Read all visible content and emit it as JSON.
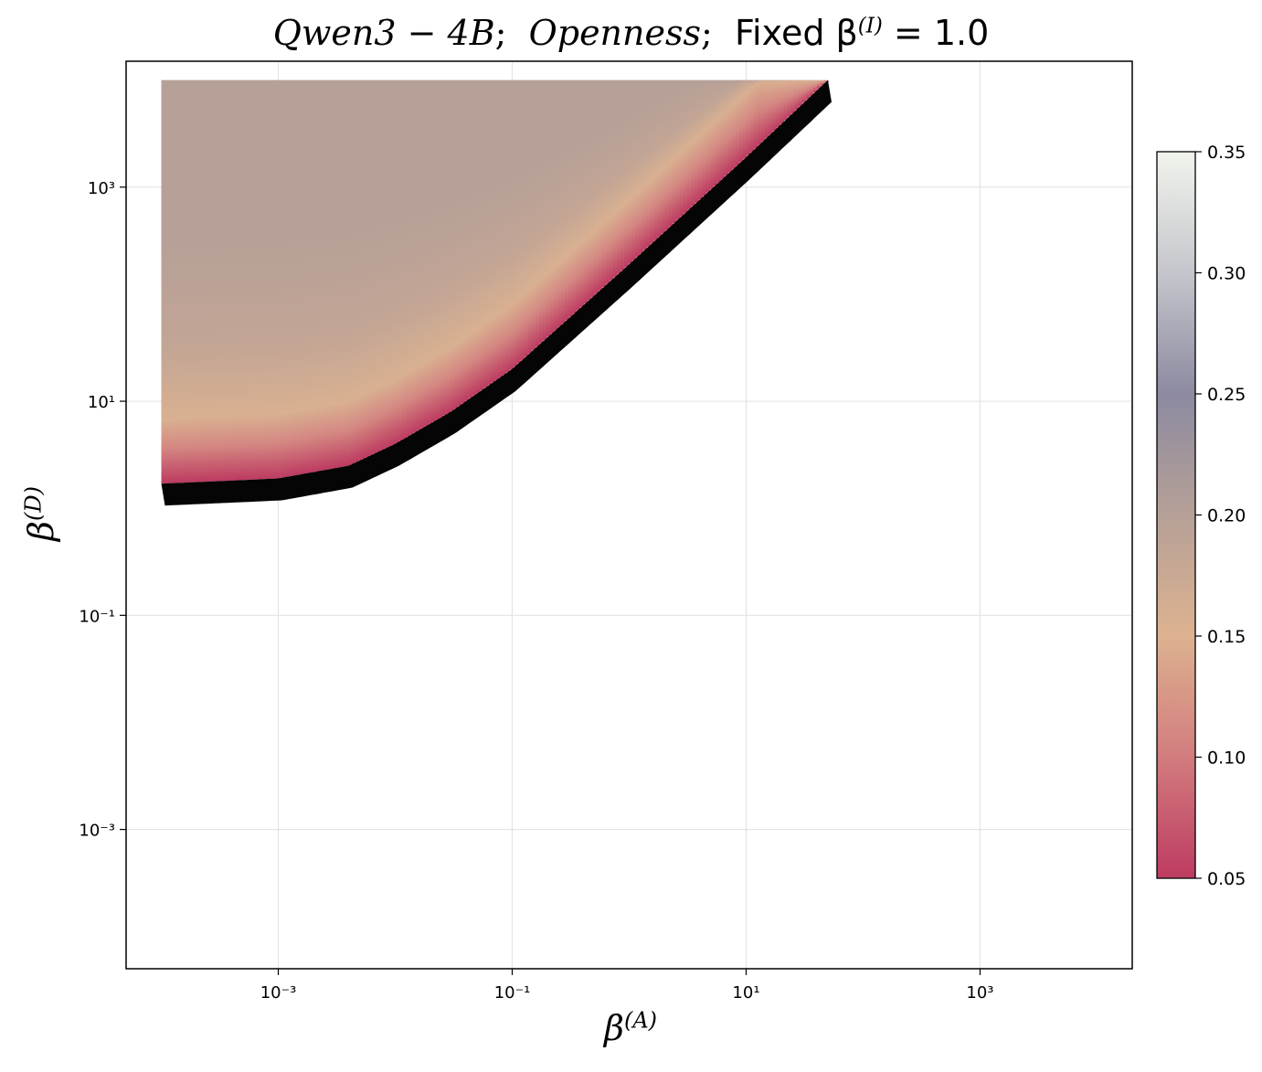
{
  "title": {
    "model": "Qwen3 − 4B",
    "trait": "Openness",
    "fixed_prefix": "Fixed β",
    "fixed_sup": "(I)",
    "fixed_value": "= 1.0"
  },
  "chart_data": {
    "type": "heatmap",
    "x_scale": "log",
    "y_scale": "log",
    "xlabel_base": "β",
    "xlabel_sup": "(A)",
    "ylabel_base": "β",
    "ylabel_sup": "(D)",
    "xlim": [
      5e-05,
      20000
    ],
    "ylim": [
      5e-05,
      15000
    ],
    "x_ticks": [
      {
        "value": 0.001,
        "label": "10⁻³"
      },
      {
        "value": 0.1,
        "label": "10⁻¹"
      },
      {
        "value": 10,
        "label": "10¹"
      },
      {
        "value": 1000,
        "label": "10³"
      }
    ],
    "y_ticks": [
      {
        "value": 0.001,
        "label": "10⁻³"
      },
      {
        "value": 0.1,
        "label": "10⁻¹"
      },
      {
        "value": 10,
        "label": "10¹"
      },
      {
        "value": 1000,
        "label": "10³"
      }
    ],
    "grid": true,
    "filled_region": {
      "x_range": [
        0.0001,
        50
      ],
      "y_max": 10000,
      "lower_boundary": [
        {
          "x": 0.0001,
          "y": 1.7
        },
        {
          "x": 0.001,
          "y": 1.9
        },
        {
          "x": 0.004,
          "y": 2.5
        },
        {
          "x": 0.01,
          "y": 4
        },
        {
          "x": 0.03,
          "y": 8
        },
        {
          "x": 0.1,
          "y": 20
        },
        {
          "x": 1,
          "y": 190
        },
        {
          "x": 10,
          "y": 1900
        },
        {
          "x": 50,
          "y": 10000
        }
      ],
      "ridge_offset_decades": 0.6,
      "background_value": 0.2,
      "ridge_value": 0.155,
      "edge_value": 0.05
    },
    "colorbar": {
      "min": 0.05,
      "max": 0.35,
      "ticks": [
        "0.05",
        "0.10",
        "0.15",
        "0.20",
        "0.25",
        "0.30",
        "0.35"
      ],
      "colors": [
        {
          "v": 0.05,
          "c": "#bd3b61"
        },
        {
          "v": 0.1,
          "c": "#d27c7e"
        },
        {
          "v": 0.15,
          "c": "#ddb290"
        },
        {
          "v": 0.2,
          "c": "#b6a097"
        },
        {
          "v": 0.25,
          "c": "#8c8aa0"
        },
        {
          "v": 0.3,
          "c": "#c4c6cc"
        },
        {
          "v": 0.35,
          "c": "#f1f4ec"
        }
      ]
    }
  }
}
